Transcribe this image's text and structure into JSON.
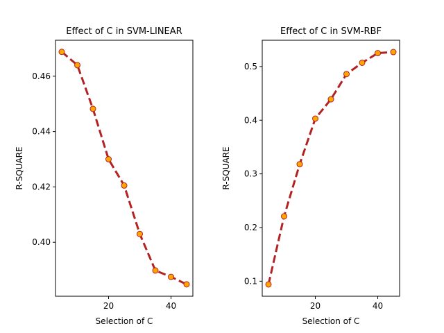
{
  "chart_data": [
    {
      "type": "line",
      "title": "Effect of C in SVM-LINEAR",
      "xlabel": "Selection of C",
      "ylabel": "R-SQUARE",
      "x": [
        5,
        10,
        15,
        20,
        25,
        30,
        35,
        40,
        45
      ],
      "series": [
        {
          "values": [
            0.4688,
            0.464,
            0.4482,
            0.43,
            0.4205,
            0.403,
            0.3898,
            0.3875,
            0.3848
          ]
        }
      ],
      "xlim": [
        3.0,
        47.0
      ],
      "ylim": [
        0.3805,
        0.473
      ],
      "xticks": [
        20,
        40
      ],
      "yticks": [
        0.4,
        0.42,
        0.44,
        0.46
      ],
      "ytick_labels": [
        "0.40",
        "0.42",
        "0.44",
        "0.46"
      ],
      "grid": false,
      "line_color": "#b22222",
      "line_style": "dashed",
      "marker_fill": "#ffa500",
      "marker_edge": "#b22222"
    },
    {
      "type": "line",
      "title": "Effect of C in SVM-RBF",
      "xlabel": "Selection of C",
      "ylabel": "R-SQUARE",
      "x": [
        5,
        10,
        15,
        20,
        25,
        30,
        35,
        40,
        45
      ],
      "series": [
        {
          "values": [
            0.094,
            0.221,
            0.318,
            0.403,
            0.439,
            0.486,
            0.507,
            0.525,
            0.527
          ]
        }
      ],
      "xlim": [
        3.0,
        47.0
      ],
      "ylim": [
        0.072,
        0.549
      ],
      "xticks": [
        20,
        40
      ],
      "yticks": [
        0.1,
        0.2,
        0.3,
        0.4,
        0.5
      ],
      "ytick_labels": [
        "0.1",
        "0.2",
        "0.3",
        "0.4",
        "0.5"
      ],
      "grid": false,
      "line_color": "#b22222",
      "line_style": "dashed",
      "marker_fill": "#ffa500",
      "marker_edge": "#b22222"
    }
  ]
}
